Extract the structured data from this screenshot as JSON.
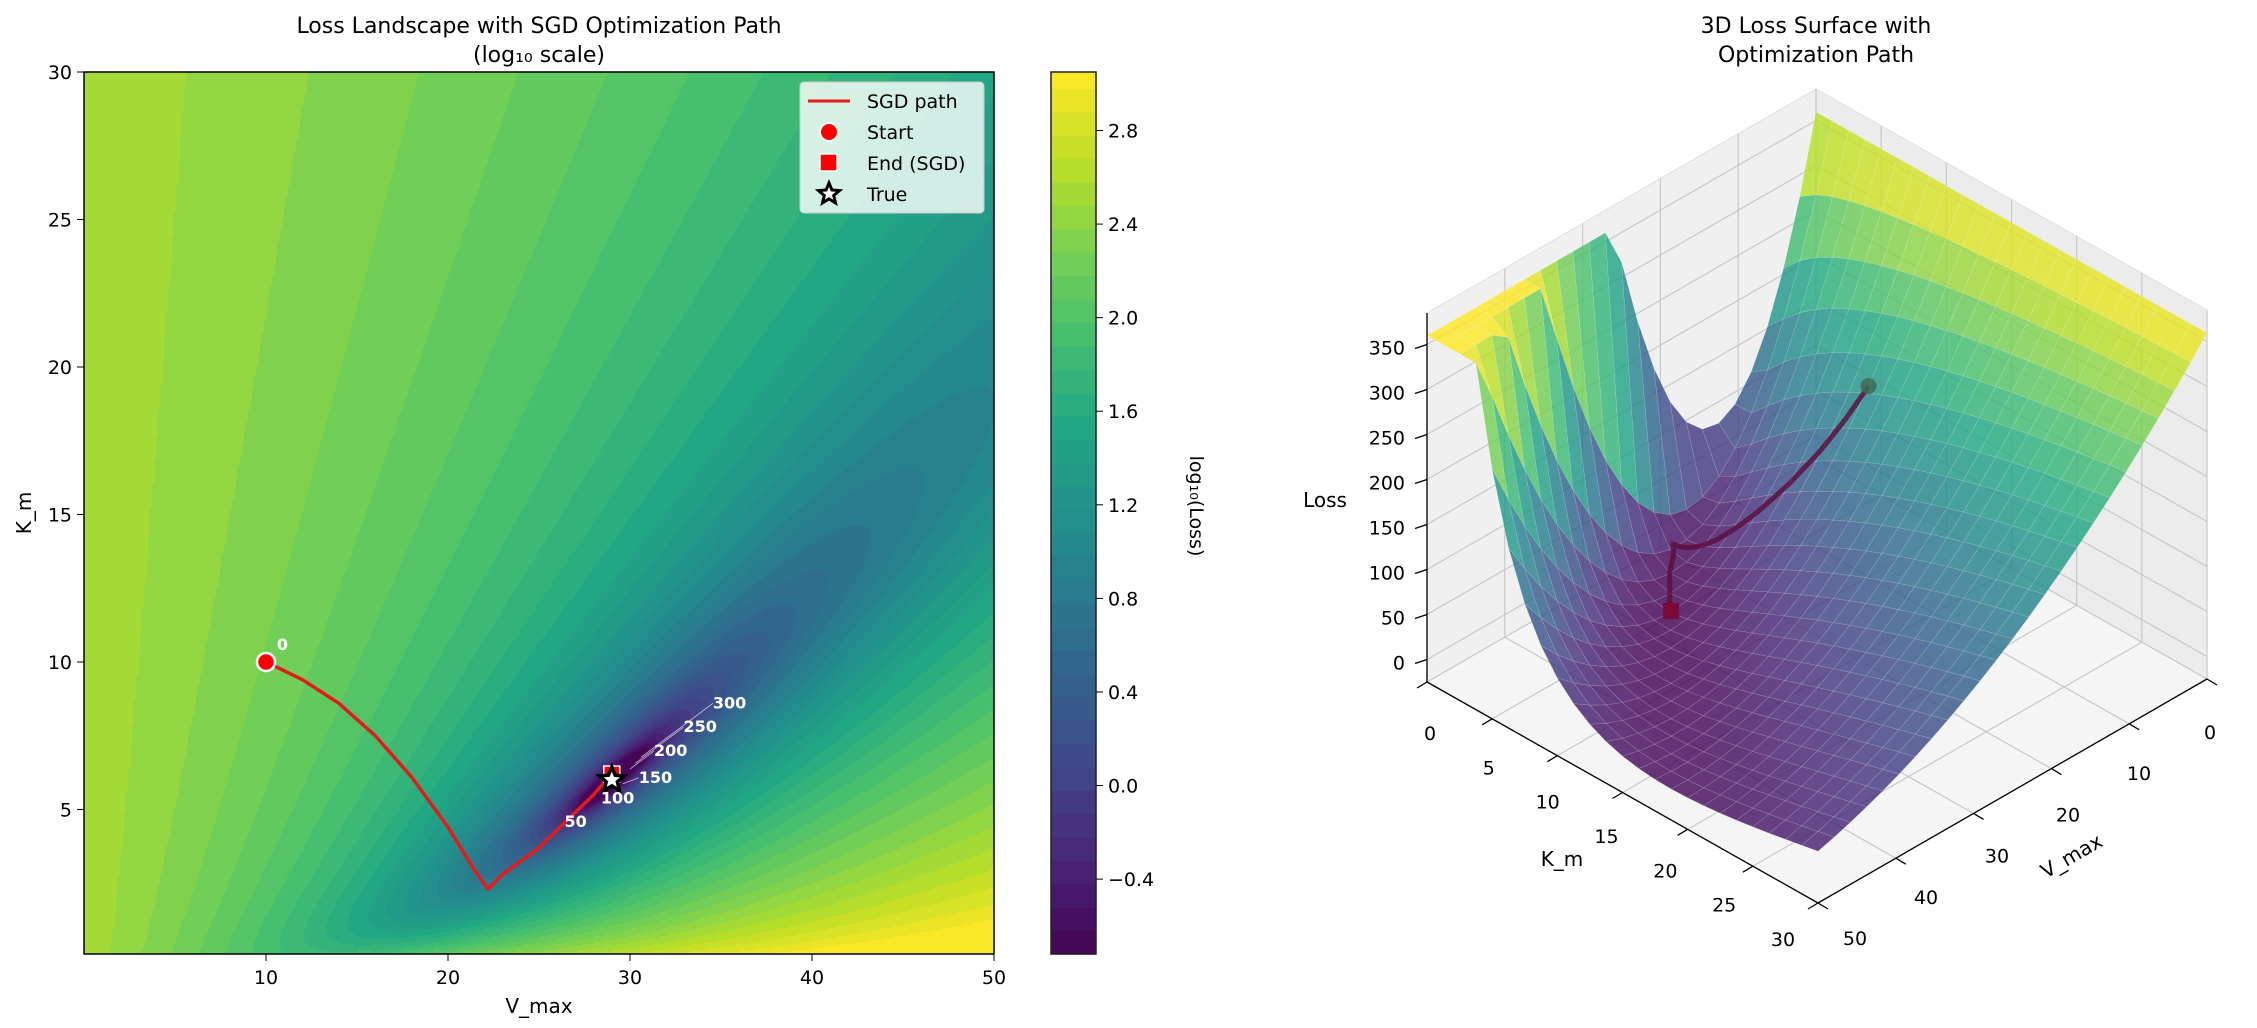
{
  "chart_data": [
    {
      "type": "heatmap",
      "title": "Loss Landscape with SGD Optimization Path",
      "subtitle": "(log₁₀ scale)",
      "xlabel": "V_max",
      "ylabel": "K_m",
      "xlim": [
        0,
        50
      ],
      "ylim": [
        0.1,
        30
      ],
      "xticks": [
        "10",
        "20",
        "30",
        "40",
        "50"
      ],
      "yticks": [
        "5",
        "10",
        "15",
        "20",
        "25",
        "30"
      ],
      "colormap": "viridis",
      "colorbar": {
        "label": "log₁₀(Loss)",
        "range": [
          -0.72,
          3.05
        ],
        "ticks": [
          "−0.4",
          "0.0",
          "0.4",
          "0.8",
          "1.2",
          "1.6",
          "2.0",
          "2.4",
          "2.8"
        ]
      },
      "legend": {
        "placement": "top-right",
        "entries": [
          "SGD path",
          "Start",
          "End (SGD)",
          "True"
        ]
      },
      "sgd_path": {
        "color": "#e41a1c",
        "x": [
          10,
          12,
          14,
          16,
          18,
          20,
          21.5,
          22.2,
          23,
          25,
          26.5,
          28,
          29
        ],
        "y": [
          10,
          9.4,
          8.6,
          7.5,
          6.1,
          4.4,
          2.9,
          2.3,
          2.8,
          3.7,
          4.6,
          5.5,
          6.2
        ]
      },
      "start": {
        "x": 10,
        "y": 10
      },
      "end_sgd": {
        "x": 29,
        "y": 6.2
      },
      "true": {
        "x": 29,
        "y": 6
      },
      "iteration_labels": [
        {
          "text": "0",
          "x": 10.6,
          "y": 10.4
        },
        {
          "text": "50",
          "x": 26.4,
          "y": 4.4
        },
        {
          "text": "100",
          "x": 28.4,
          "y": 5.2
        },
        {
          "text": "150",
          "x": 29.6,
          "y": 5.7
        },
        {
          "text": "200",
          "x": 30.0,
          "y": 6.2
        },
        {
          "text": "250",
          "x": 30.3,
          "y": 6.4
        },
        {
          "text": "300",
          "x": 30.6,
          "y": 6.6
        }
      ]
    },
    {
      "type": "surface",
      "title": "3D Loss Surface with",
      "subtitle": "Optimization Path",
      "xlabel": "V_max",
      "ylabel": "K_m",
      "zlabel": "Loss",
      "xlim": [
        0,
        50
      ],
      "ylim": [
        0,
        30
      ],
      "zlim": [
        -25,
        385
      ],
      "xticks": [
        "0",
        "10",
        "20",
        "30",
        "40",
        "50"
      ],
      "yticks": [
        "0",
        "5",
        "10",
        "15",
        "20",
        "25",
        "30"
      ],
      "zticks": [
        "0",
        "50",
        "100",
        "150",
        "200",
        "250",
        "300",
        "350"
      ],
      "colormap": "viridis",
      "path_color": "#5c0b3a",
      "start": {
        "x": 10,
        "y": 10
      },
      "end": {
        "x": 29,
        "y": 6.2
      }
    }
  ]
}
